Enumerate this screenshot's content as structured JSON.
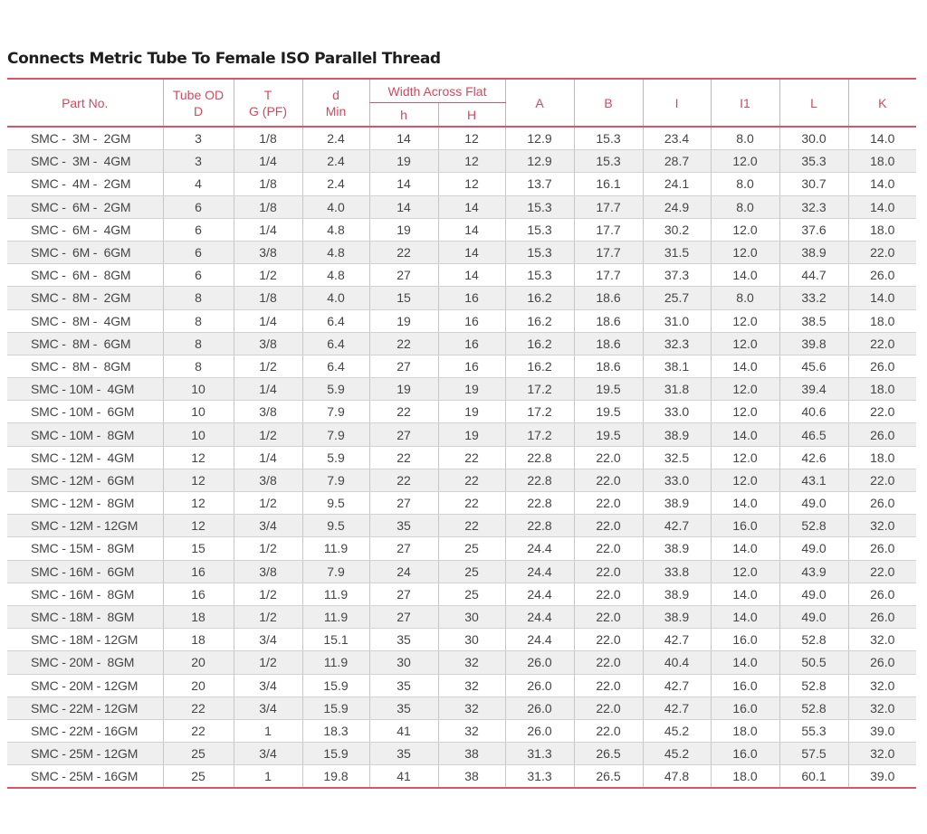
{
  "title": "Connects Metric Tube To Female ISO Parallel Thread",
  "accent_color": "#d9465c",
  "header": {
    "part_no": "Part No.",
    "tube_od_1": "Tube OD",
    "tube_od_2": "D",
    "t_1": "T",
    "t_2": "G (PF)",
    "d_1": "d",
    "d_2": "Min",
    "width_across_flat": "Width Across Flat",
    "h": "h",
    "H": "H",
    "A": "A",
    "B": "B",
    "I": "I",
    "I1": "I1",
    "L": "L",
    "K": "K"
  },
  "rows": [
    [
      "SMC -  3M -  2GM",
      "3",
      "1/8",
      "2.4",
      "14",
      "12",
      "12.9",
      "15.3",
      "23.4",
      "8.0",
      "30.0",
      "14.0"
    ],
    [
      "SMC -  3M -  4GM",
      "3",
      "1/4",
      "2.4",
      "19",
      "12",
      "12.9",
      "15.3",
      "28.7",
      "12.0",
      "35.3",
      "18.0"
    ],
    [
      "SMC -  4M -  2GM",
      "4",
      "1/8",
      "2.4",
      "14",
      "12",
      "13.7",
      "16.1",
      "24.1",
      "8.0",
      "30.7",
      "14.0"
    ],
    [
      "SMC -  6M -  2GM",
      "6",
      "1/8",
      "4.0",
      "14",
      "14",
      "15.3",
      "17.7",
      "24.9",
      "8.0",
      "32.3",
      "14.0"
    ],
    [
      "SMC -  6M -  4GM",
      "6",
      "1/4",
      "4.8",
      "19",
      "14",
      "15.3",
      "17.7",
      "30.2",
      "12.0",
      "37.6",
      "18.0"
    ],
    [
      "SMC -  6M -  6GM",
      "6",
      "3/8",
      "4.8",
      "22",
      "14",
      "15.3",
      "17.7",
      "31.5",
      "12.0",
      "38.9",
      "22.0"
    ],
    [
      "SMC -  6M -  8GM",
      "6",
      "1/2",
      "4.8",
      "27",
      "14",
      "15.3",
      "17.7",
      "37.3",
      "14.0",
      "44.7",
      "26.0"
    ],
    [
      "SMC -  8M -  2GM",
      "8",
      "1/8",
      "4.0",
      "15",
      "16",
      "16.2",
      "18.6",
      "25.7",
      "8.0",
      "33.2",
      "14.0"
    ],
    [
      "SMC -  8M -  4GM",
      "8",
      "1/4",
      "6.4",
      "19",
      "16",
      "16.2",
      "18.6",
      "31.0",
      "12.0",
      "38.5",
      "18.0"
    ],
    [
      "SMC -  8M -  6GM",
      "8",
      "3/8",
      "6.4",
      "22",
      "16",
      "16.2",
      "18.6",
      "32.3",
      "12.0",
      "39.8",
      "22.0"
    ],
    [
      "SMC -  8M -  8GM",
      "8",
      "1/2",
      "6.4",
      "27",
      "16",
      "16.2",
      "18.6",
      "38.1",
      "14.0",
      "45.6",
      "26.0"
    ],
    [
      "SMC - 10M -  4GM",
      "10",
      "1/4",
      "5.9",
      "19",
      "19",
      "17.2",
      "19.5",
      "31.8",
      "12.0",
      "39.4",
      "18.0"
    ],
    [
      "SMC - 10M -  6GM",
      "10",
      "3/8",
      "7.9",
      "22",
      "19",
      "17.2",
      "19.5",
      "33.0",
      "12.0",
      "40.6",
      "22.0"
    ],
    [
      "SMC - 10M -  8GM",
      "10",
      "1/2",
      "7.9",
      "27",
      "19",
      "17.2",
      "19.5",
      "38.9",
      "14.0",
      "46.5",
      "26.0"
    ],
    [
      "SMC - 12M -  4GM",
      "12",
      "1/4",
      "5.9",
      "22",
      "22",
      "22.8",
      "22.0",
      "32.5",
      "12.0",
      "42.6",
      "18.0"
    ],
    [
      "SMC - 12M -  6GM",
      "12",
      "3/8",
      "7.9",
      "22",
      "22",
      "22.8",
      "22.0",
      "33.0",
      "12.0",
      "43.1",
      "22.0"
    ],
    [
      "SMC - 12M -  8GM",
      "12",
      "1/2",
      "9.5",
      "27",
      "22",
      "22.8",
      "22.0",
      "38.9",
      "14.0",
      "49.0",
      "26.0"
    ],
    [
      "SMC - 12M - 12GM",
      "12",
      "3/4",
      "9.5",
      "35",
      "22",
      "22.8",
      "22.0",
      "42.7",
      "16.0",
      "52.8",
      "32.0"
    ],
    [
      "SMC - 15M -  8GM",
      "15",
      "1/2",
      "11.9",
      "27",
      "25",
      "24.4",
      "22.0",
      "38.9",
      "14.0",
      "49.0",
      "26.0"
    ],
    [
      "SMC - 16M -  6GM",
      "16",
      "3/8",
      "7.9",
      "24",
      "25",
      "24.4",
      "22.0",
      "33.8",
      "12.0",
      "43.9",
      "22.0"
    ],
    [
      "SMC - 16M -  8GM",
      "16",
      "1/2",
      "11.9",
      "27",
      "25",
      "24.4",
      "22.0",
      "38.9",
      "14.0",
      "49.0",
      "26.0"
    ],
    [
      "SMC - 18M -  8GM",
      "18",
      "1/2",
      "11.9",
      "27",
      "30",
      "24.4",
      "22.0",
      "38.9",
      "14.0",
      "49.0",
      "26.0"
    ],
    [
      "SMC - 18M - 12GM",
      "18",
      "3/4",
      "15.1",
      "35",
      "30",
      "24.4",
      "22.0",
      "42.7",
      "16.0",
      "52.8",
      "32.0"
    ],
    [
      "SMC - 20M -  8GM",
      "20",
      "1/2",
      "11.9",
      "30",
      "32",
      "26.0",
      "22.0",
      "40.4",
      "14.0",
      "50.5",
      "26.0"
    ],
    [
      "SMC - 20M - 12GM",
      "20",
      "3/4",
      "15.9",
      "35",
      "32",
      "26.0",
      "22.0",
      "42.7",
      "16.0",
      "52.8",
      "32.0"
    ],
    [
      "SMC - 22M - 12GM",
      "22",
      "3/4",
      "15.9",
      "35",
      "32",
      "26.0",
      "22.0",
      "42.7",
      "16.0",
      "52.8",
      "32.0"
    ],
    [
      "SMC - 22M - 16GM",
      "22",
      "1",
      "18.3",
      "41",
      "32",
      "26.0",
      "22.0",
      "45.2",
      "18.0",
      "55.3",
      "39.0"
    ],
    [
      "SMC - 25M - 12GM",
      "25",
      "3/4",
      "15.9",
      "35",
      "38",
      "31.3",
      "26.5",
      "45.2",
      "16.0",
      "57.5",
      "32.0"
    ],
    [
      "SMC - 25M - 16GM",
      "25",
      "1",
      "19.8",
      "41",
      "38",
      "31.3",
      "26.5",
      "47.8",
      "18.0",
      "60.1",
      "39.0"
    ]
  ]
}
